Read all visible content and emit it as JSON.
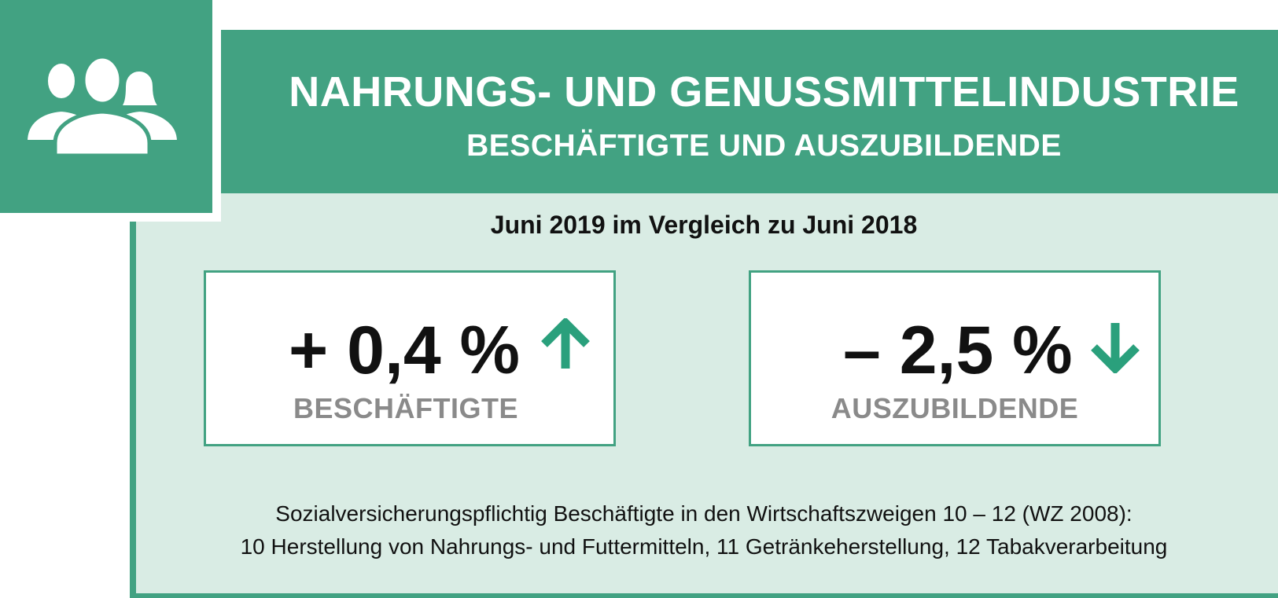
{
  "header": {
    "title": "NAHRUNGS- UND GENUSSMITTELINDUSTRIE",
    "subtitle": "BESCHÄFTIGTE UND AUSZUBILDENDE",
    "icon": "people-group-icon"
  },
  "comparison_label": "Juni 2019 im Vergleich zu Juni 2018",
  "stats": [
    {
      "value": "+ 0,4 %",
      "label": "BESCHÄFTIGTE",
      "direction": "up",
      "icon": "arrow-up-icon"
    },
    {
      "value": "– 2,5 %",
      "label": "AUSZUBILDENDE",
      "direction": "down",
      "icon": "arrow-down-icon"
    }
  ],
  "footnote": {
    "line1": "Sozialversicherungspflichtig Beschäftigte in den Wirtschaftszweigen 10 – 12 (WZ 2008):",
    "line2": "10 Herstellung von Nahrungs- und Futtermitteln, 11 Getränkeherstellung, 12 Tabakverarbeitung"
  },
  "colors": {
    "accent": "#42a282",
    "background_light": "#d9ece4",
    "arrow": "#2aa07c",
    "label_gray": "#8a8a8a",
    "text": "#111111"
  }
}
